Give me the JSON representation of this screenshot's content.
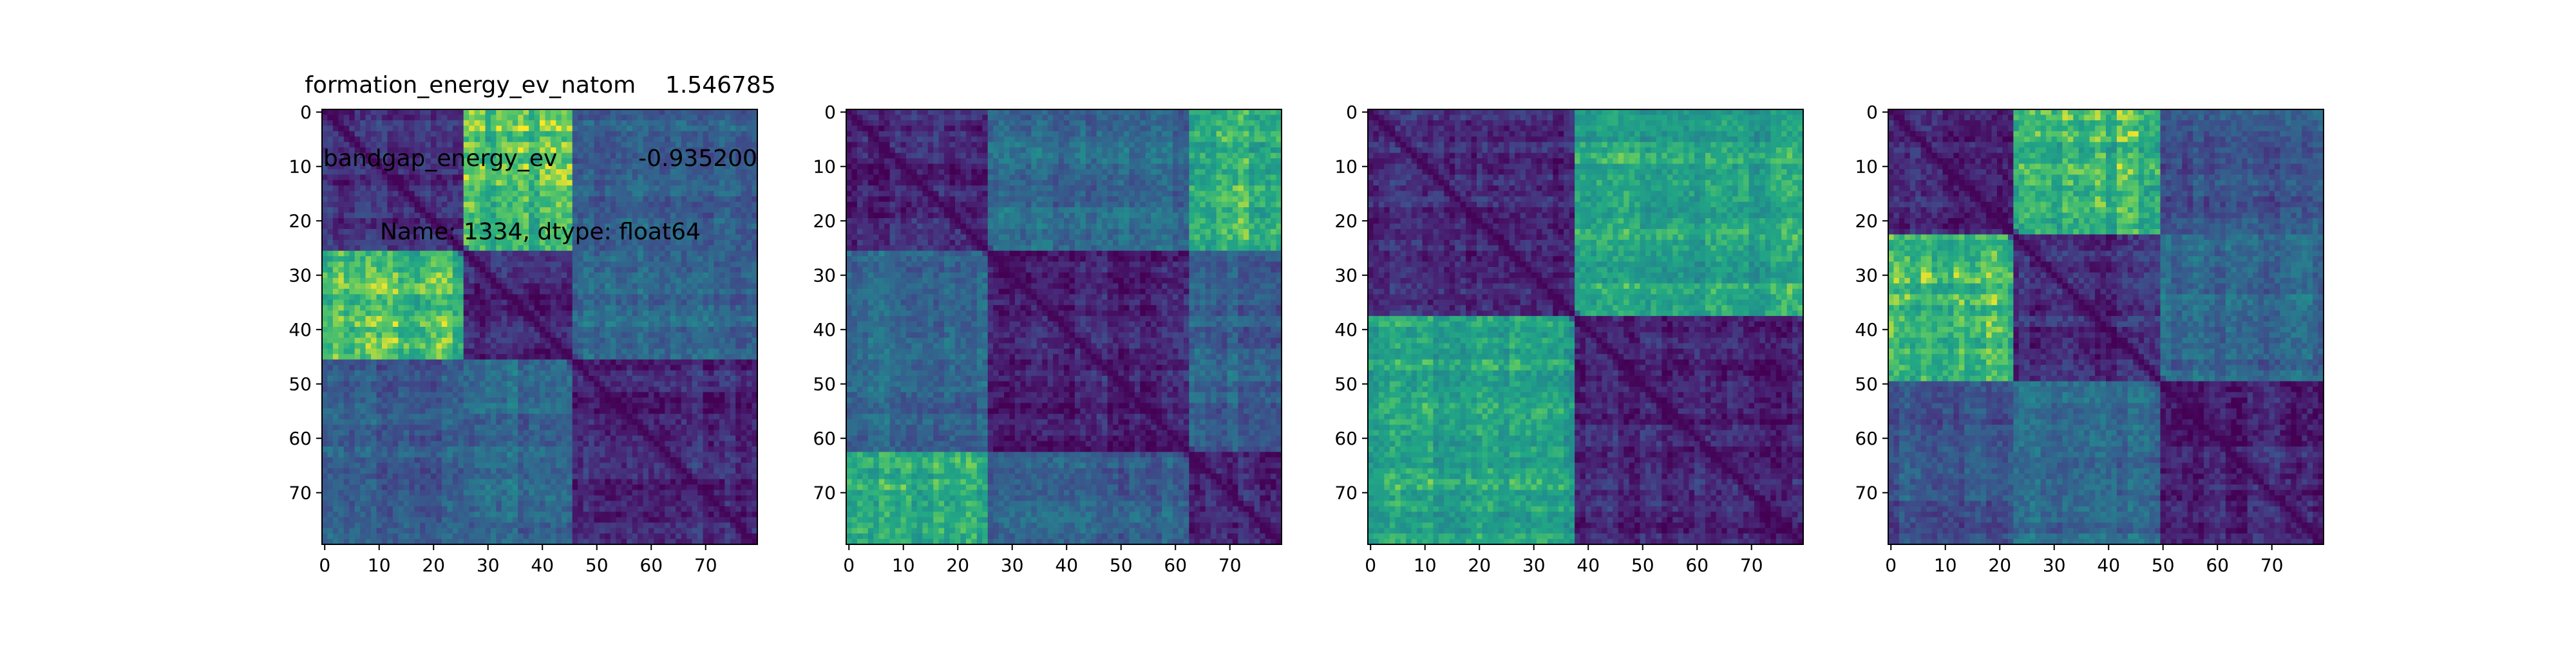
{
  "figure": {
    "colormap": "viridis",
    "background": "#ffffff"
  },
  "chart_data": [
    {
      "type": "heatmap",
      "title_lines": [
        "formation_energy_ev_natom    1.546785",
        "bandgap_energy_ev           -0.935200",
        "Name: 1334, dtype: float64"
      ],
      "xlabel": "",
      "ylabel": "",
      "shape": [
        80,
        80
      ],
      "xlim": [
        0,
        79
      ],
      "ylim": [
        79,
        0
      ],
      "xticks": [
        0,
        10,
        20,
        30,
        40,
        50,
        60,
        70
      ],
      "yticks": [
        0,
        10,
        20,
        30,
        40,
        50,
        60,
        70
      ],
      "value_range": [
        0,
        1
      ],
      "block_boundaries": [
        0,
        26,
        46,
        80
      ],
      "block_means": [
        [
          0.15,
          0.82,
          0.38
        ],
        [
          0.82,
          0.12,
          0.42
        ],
        [
          0.38,
          0.42,
          0.14
        ]
      ]
    },
    {
      "type": "heatmap",
      "title_lines": [],
      "xlabel": "",
      "ylabel": "",
      "shape": [
        80,
        80
      ],
      "xlim": [
        0,
        79
      ],
      "ylim": [
        79,
        0
      ],
      "xticks": [
        0,
        10,
        20,
        30,
        40,
        50,
        60,
        70
      ],
      "yticks": [
        0,
        10,
        20,
        30,
        40,
        50,
        60,
        70
      ],
      "value_range": [
        0,
        1
      ],
      "block_boundaries": [
        0,
        26,
        63,
        80
      ],
      "block_means": [
        [
          0.12,
          0.42,
          0.78
        ],
        [
          0.42,
          0.12,
          0.38
        ],
        [
          0.78,
          0.38,
          0.12
        ]
      ]
    },
    {
      "type": "heatmap",
      "title_lines": [],
      "xlabel": "",
      "ylabel": "",
      "shape": [
        80,
        80
      ],
      "xlim": [
        0,
        79
      ],
      "ylim": [
        79,
        0
      ],
      "xticks": [
        0,
        10,
        20,
        30,
        40,
        50,
        60,
        70
      ],
      "yticks": [
        0,
        10,
        20,
        30,
        40,
        50,
        60,
        70
      ],
      "value_range": [
        0,
        1
      ],
      "block_boundaries": [
        0,
        38,
        80
      ],
      "block_means": [
        [
          0.14,
          0.72
        ],
        [
          0.72,
          0.14
        ]
      ]
    },
    {
      "type": "heatmap",
      "title_lines": [],
      "xlabel": "",
      "ylabel": "",
      "shape": [
        80,
        80
      ],
      "xlim": [
        0,
        79
      ],
      "ylim": [
        79,
        0
      ],
      "xticks": [
        0,
        10,
        20,
        30,
        40,
        50,
        60,
        70
      ],
      "yticks": [
        0,
        10,
        20,
        30,
        40,
        50,
        60,
        70
      ],
      "value_range": [
        0,
        1
      ],
      "block_boundaries": [
        0,
        23,
        50,
        80
      ],
      "block_means": [
        [
          0.15,
          0.8,
          0.32
        ],
        [
          0.8,
          0.15,
          0.42
        ],
        [
          0.32,
          0.42,
          0.13
        ]
      ]
    }
  ]
}
